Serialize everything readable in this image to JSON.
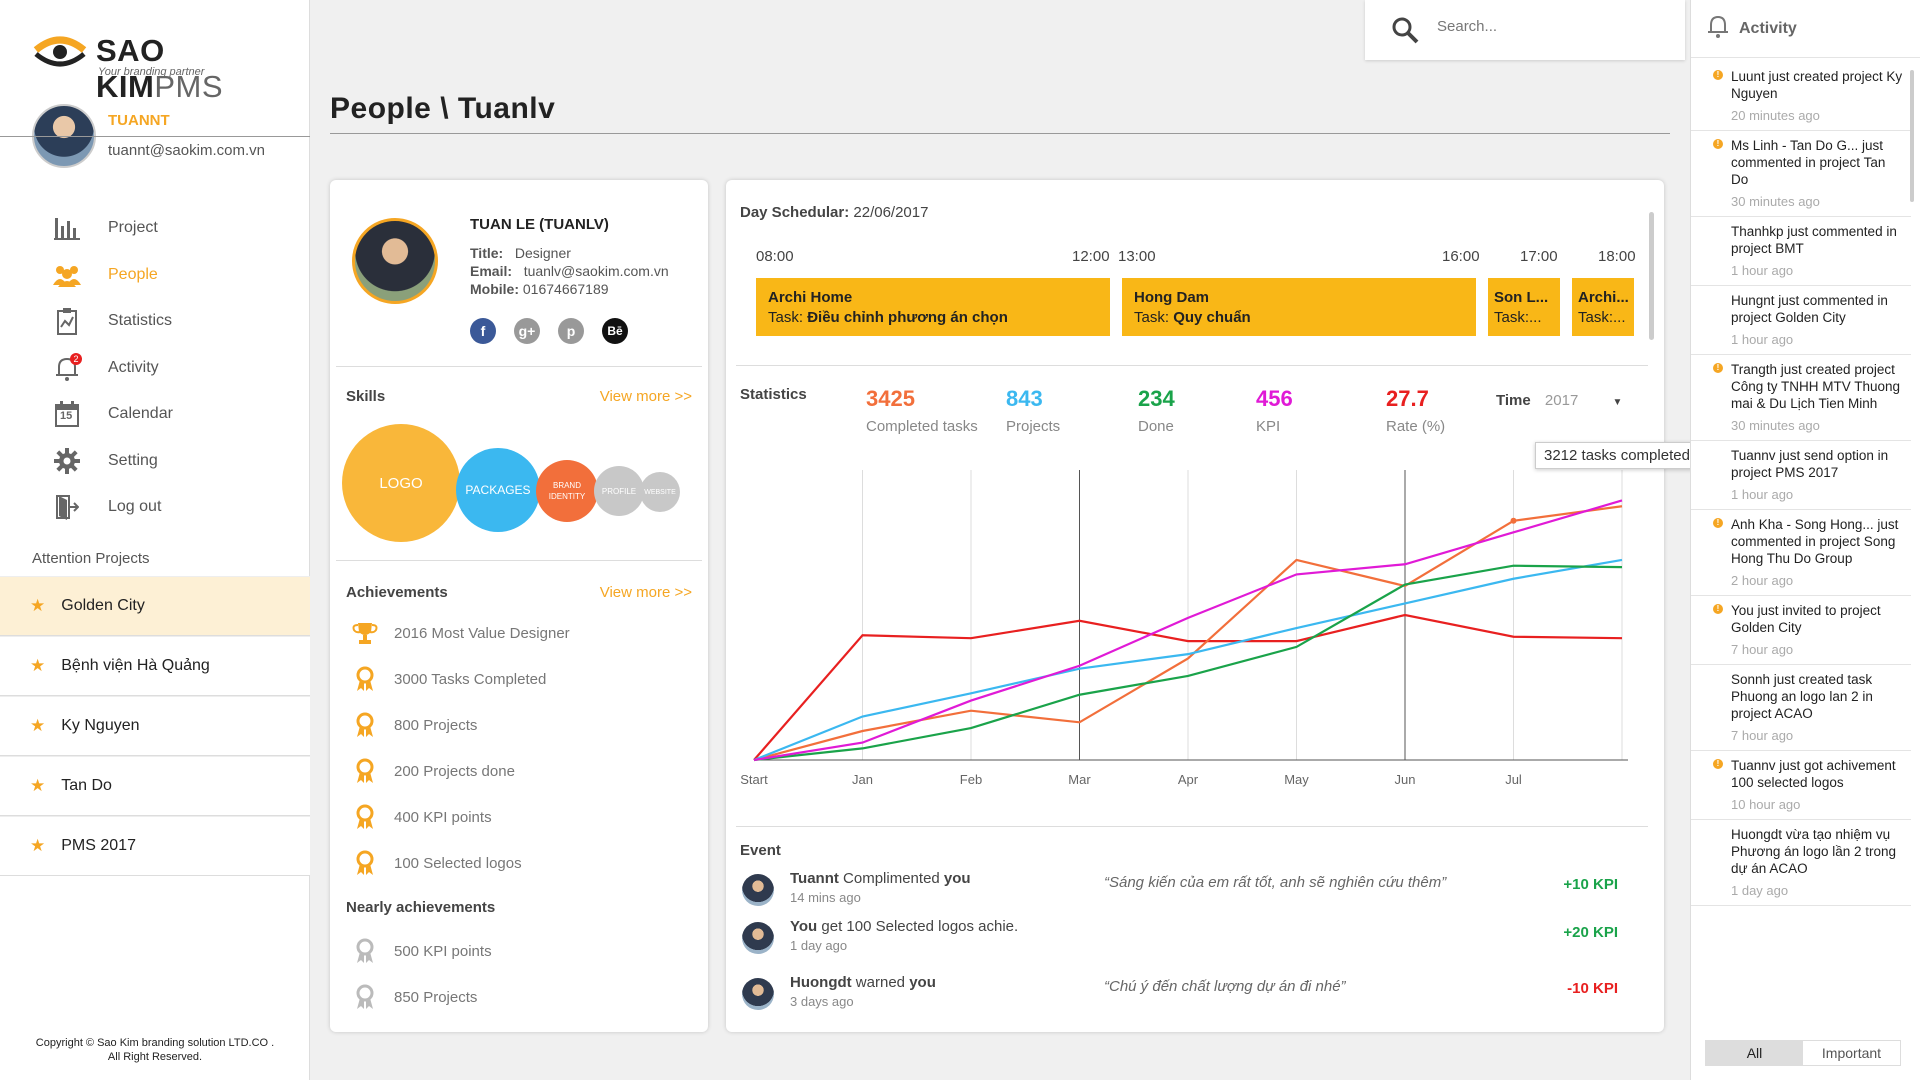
{
  "brand": {
    "name": "SAO KIM",
    "suffix": "PMS",
    "tagline": "Your branding partner",
    "accent": "#f5a623"
  },
  "user": {
    "name": "TUANNT",
    "email": "tuannt@saokim.com.vn"
  },
  "nav": [
    {
      "label": "Project",
      "icon": "bar-chart-icon"
    },
    {
      "label": "People",
      "icon": "people-icon",
      "active": true
    },
    {
      "label": "Statistics",
      "icon": "statistics-icon"
    },
    {
      "label": "Activity",
      "icon": "bell-icon",
      "badge": "2"
    },
    {
      "label": "Calendar",
      "icon": "calendar-icon",
      "day": "15"
    },
    {
      "label": "Setting",
      "icon": "gear-icon"
    },
    {
      "label": "Log out",
      "icon": "logout-icon"
    }
  ],
  "attention": {
    "title": "Attention Projects",
    "items": [
      "Golden City",
      "Bệnh viện Hà Quảng",
      "Ky Nguyen",
      "Tan Do",
      "PMS 2017"
    ]
  },
  "copyright": {
    "line1": "Copyright © Sao Kim branding solution LTD.CO .",
    "line2": "All Right Reserved."
  },
  "search": {
    "placeholder": "Search..."
  },
  "page": {
    "title": "People \\ Tuanlv"
  },
  "profile": {
    "name": "TUAN LE (TUANLV)",
    "title_label": "Title:",
    "title": "Designer",
    "email_label": "Email:",
    "email": "tuanlv@saokim.com.vn",
    "mobile_label": "Mobile:",
    "mobile": "01674667189",
    "socials": [
      {
        "icon": "facebook-icon",
        "glyph": "f",
        "color": "#3b5998"
      },
      {
        "icon": "google-plus-icon",
        "glyph": "g+",
        "color": "#999999"
      },
      {
        "icon": "pinterest-icon",
        "glyph": "p",
        "color": "#999999"
      },
      {
        "icon": "behance-icon",
        "glyph": "Bē",
        "color": "#111111"
      }
    ],
    "skills_title": "Skills",
    "view_more": "View more >>",
    "skills": [
      {
        "label": "LOGO",
        "color": "#f9b73a"
      },
      {
        "label": "PACKAGES",
        "color": "#3bb8f0"
      },
      {
        "label": "BRAND IDENTITY",
        "color": "#f26f3b"
      },
      {
        "label": "PROFILE",
        "color": "#c8c8c8"
      },
      {
        "label": "WEBSITE",
        "color": "#c8c8c8"
      }
    ],
    "achievements_title": "Achievements",
    "achievements": [
      {
        "label": "2016 Most Value Designer",
        "icon": "trophy-icon"
      },
      {
        "label": "3000 Tasks Completed",
        "icon": "medal-icon"
      },
      {
        "label": "800 Projects",
        "icon": "medal-icon"
      },
      {
        "label": "200 Projects done",
        "icon": "medal-icon"
      },
      {
        "label": "400 KPI points",
        "icon": "medal-icon"
      },
      {
        "label": "100 Selected logos",
        "icon": "medal-icon"
      }
    ],
    "nearly_title": "Nearly achievements",
    "nearly": [
      {
        "label": "500 KPI points",
        "icon": "medal-gray-icon"
      },
      {
        "label": "850 Projects",
        "icon": "medal-gray-icon"
      }
    ]
  },
  "schedule": {
    "label": "Day Schedular:",
    "date": "22/06/2017",
    "times": [
      "08:00",
      "12:00",
      "13:00",
      "16:00",
      "17:00",
      "18:00"
    ],
    "task_label": "Task:",
    "blocks": [
      {
        "name": "Archi Home",
        "task": "Điều chỉnh phương án chọn"
      },
      {
        "name": "Hong Dam",
        "task": "Quy chuẩn"
      },
      {
        "name": "Son L...",
        "task": "..."
      },
      {
        "name": "Archi...",
        "task": "..."
      }
    ]
  },
  "statistics": {
    "label": "Statistics",
    "items": [
      {
        "value": "3425",
        "label": "Completed tasks",
        "color": "#f26f3b"
      },
      {
        "value": "843",
        "label": "Projects",
        "color": "#3bb8f0"
      },
      {
        "value": "234",
        "label": "Done",
        "color": "#1aa34a"
      },
      {
        "value": "456",
        "label": "KPI",
        "color": "#e01ad6"
      },
      {
        "value": "27.7",
        "label": "Rate (%)",
        "color": "#e82020"
      }
    ],
    "time_label": "Time",
    "year": "2017"
  },
  "chart_data": {
    "type": "line",
    "categories": [
      "Start",
      "Jan",
      "Feb",
      "Mar",
      "Apr",
      "May",
      "Jun",
      "Jul",
      ""
    ],
    "series": [
      {
        "color": "#e82020",
        "values": [
          0,
          86,
          84,
          96,
          82,
          82,
          100,
          85,
          84
        ]
      },
      {
        "color": "#f26f3b",
        "values": [
          0,
          20,
          34,
          26,
          70,
          138,
          120,
          165,
          175
        ]
      },
      {
        "color": "#3bb8f0",
        "values": [
          0,
          30,
          46,
          63,
          73,
          91,
          108,
          125,
          138
        ]
      },
      {
        "color": "#1aa34a",
        "values": [
          0,
          8,
          22,
          45,
          58,
          78,
          121,
          134,
          133
        ]
      },
      {
        "color": "#e01ad6",
        "values": [
          0,
          12,
          41,
          65,
          98,
          128,
          135,
          157,
          179
        ]
      }
    ],
    "ylim": [
      0,
      200
    ],
    "tooltip": "3212 tasks completed",
    "grid": true
  },
  "events": {
    "title": "Event",
    "items": [
      {
        "actor": "Tuannt",
        "action": " Complimented ",
        "target": "you",
        "time": "14 mins ago",
        "quote": "“Sáng kiến của em rất tốt, anh sẽ nghiên cứu thêm”",
        "kpi": "+10 KPI",
        "color": "#1aa34a"
      },
      {
        "actor": "You",
        "action": " get 100 Selected logos achie.",
        "target": "",
        "time": "1 day ago",
        "quote": "",
        "kpi": "+20 KPI",
        "color": "#1aa34a"
      },
      {
        "actor": "Huongdt",
        "action": " warned ",
        "target": "you",
        "time": "3 days ago",
        "quote": "“Chú ý đến chất lượng dự án đi nhé”",
        "kpi": "-10 KPI",
        "color": "#e82020"
      }
    ]
  },
  "activity": {
    "title": "Activity",
    "items": [
      {
        "text": "Luunt just created project Ky Nguyen",
        "time": "20 minutes ago",
        "important": true
      },
      {
        "text": "Ms Linh - Tan Do G... just commented in project Tan Do",
        "time": "30 minutes ago",
        "important": true
      },
      {
        "text": "Thanhkp just commented in project BMT",
        "time": "1 hour ago",
        "important": false
      },
      {
        "text": "Hungnt just commented in project Golden City",
        "time": "1 hour ago",
        "important": false
      },
      {
        "text": "Trangth just created project Công ty TNHH MTV Thuong mai & Du Lịch Tien Minh",
        "time": "30 minutes ago",
        "important": true
      },
      {
        "text": "Tuannv just send option in project PMS 2017",
        "time": "1 hour ago",
        "important": false
      },
      {
        "text": "Anh Kha - Song Hong... just commented in project Song Hong Thu Do Group",
        "time": "2 hour ago",
        "important": true
      },
      {
        "text": "You just invited to project Golden City",
        "time": "7 hour ago",
        "important": true
      },
      {
        "text": "Sonnh just created task Phuong an logo lan 2 in project ACAO",
        "time": "7 hour ago",
        "important": false
      },
      {
        "text": "Tuannv just got achivement 100 selected logos",
        "time": "10 hour ago",
        "important": true
      },
      {
        "text": "Huongdt vừa tạo nhiệm vụ Phương án logo lần 2 trong dự án ACAO",
        "time": "1 day ago",
        "important": false
      }
    ],
    "tabs": [
      "All",
      "Important"
    ]
  }
}
